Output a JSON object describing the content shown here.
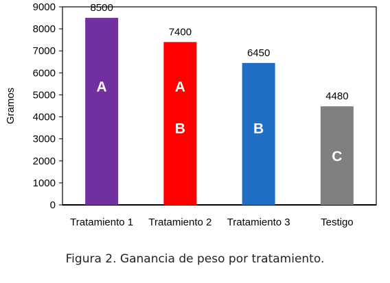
{
  "chart_data": {
    "type": "bar",
    "categories": [
      "Tratamiento 1",
      "Tratamiento 2",
      "Tratamiento 3",
      "Testigo"
    ],
    "values": [
      8500,
      7400,
      6450,
      4480
    ],
    "data_labels": [
      "8500",
      "7400",
      "6450",
      "4480"
    ],
    "colors": [
      "#7030a0",
      "#ff0000",
      "#1f6fc4",
      "#808080"
    ],
    "group_letters": [
      [
        "A"
      ],
      [
        "A",
        "B"
      ],
      [
        "B"
      ],
      [
        "C"
      ]
    ],
    "ylabel": "Gramos",
    "xlabel": "",
    "ylim": [
      0,
      9000
    ],
    "yticks": [
      0,
      1000,
      2000,
      3000,
      4000,
      5000,
      6000,
      7000,
      8000,
      9000
    ],
    "grid": false,
    "legend": "none"
  },
  "caption": "Figura 2. Ganancia de peso por tratamiento."
}
